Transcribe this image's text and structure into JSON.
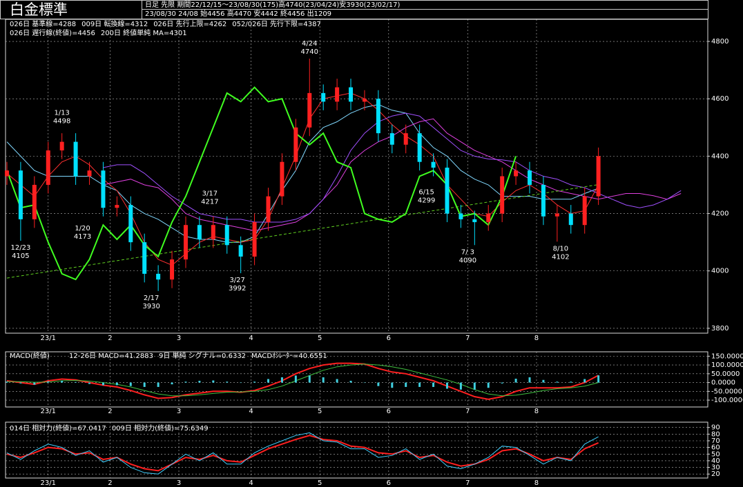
{
  "chart_data": [
    {
      "type": "candlestick",
      "title": "白金標準",
      "subtitle": "日足  先限  期間22/12/15～23/08/30(175)高4740(23/04/24)安3930(23/02/17)",
      "info": "23/08/30 24/08 始4456 高4470 安4442 終4456 出1209",
      "x": [
        0,
        4,
        8,
        12,
        16,
        20,
        24,
        28,
        32,
        36,
        40,
        44,
        48,
        52,
        56,
        60,
        64,
        68,
        72,
        76,
        80,
        84,
        88,
        92,
        96,
        100,
        104,
        108,
        112,
        116,
        120,
        124,
        128,
        132,
        136,
        140,
        144,
        148,
        152,
        156,
        160,
        164,
        168,
        172,
        176,
        180,
        184,
        188,
        192,
        196
      ],
      "open": [
        4330,
        4350,
        4180,
        4300,
        4420,
        4450,
        4330,
        4350,
        4220,
        4230,
        4100,
        3990,
        3970,
        4040,
        4160,
        4110,
        4160,
        4090,
        4050,
        4170,
        4260,
        4380,
        4500,
        4620,
        4590,
        4640,
        4590,
        4600,
        4480,
        4440,
        4480,
        4380,
        4360,
        4200,
        4180,
        4170,
        4200,
        4330,
        4350,
        4300,
        4190,
        4200,
        4160,
        4260,
        null,
        null,
        null,
        null,
        null,
        null
      ],
      "high": [
        4380,
        4380,
        4330,
        4450,
        4480,
        4480,
        4380,
        4380,
        4260,
        4260,
        4130,
        4020,
        4070,
        4190,
        4190,
        4190,
        4190,
        4120,
        4200,
        4290,
        4410,
        4530,
        4740,
        4650,
        4670,
        4670,
        4630,
        4630,
        4510,
        4510,
        4510,
        4410,
        4390,
        4230,
        4210,
        4230,
        4360,
        4380,
        4380,
        4330,
        4230,
        4230,
        4290,
        4430,
        null,
        null,
        null,
        null,
        null,
        null
      ],
      "low": [
        4300,
        4105,
        4150,
        4270,
        4390,
        4300,
        4300,
        4190,
        4190,
        4070,
        3960,
        3930,
        3940,
        4010,
        4080,
        4080,
        4060,
        3992,
        4020,
        4140,
        4230,
        4350,
        4470,
        4560,
        4560,
        4560,
        4560,
        4450,
        4410,
        4410,
        4350,
        4330,
        4170,
        4150,
        4090,
        4140,
        4170,
        4300,
        4270,
        4160,
        4102,
        4130,
        4130,
        4230,
        null,
        null,
        null,
        null,
        null,
        null
      ],
      "close": [
        4350,
        4180,
        4300,
        4420,
        4450,
        4330,
        4350,
        4220,
        4230,
        4100,
        3990,
        3970,
        4040,
        4160,
        4110,
        4160,
        4090,
        4050,
        4170,
        4260,
        4380,
        4500,
        4620,
        4590,
        4640,
        4590,
        4600,
        4480,
        4440,
        4480,
        4380,
        4360,
        4200,
        4180,
        4170,
        4200,
        4330,
        4350,
        4300,
        4190,
        4200,
        4160,
        4260,
        4400,
        null,
        null,
        null,
        null,
        null,
        null
      ],
      "up_color": "#ff2020",
      "down_color": "#00e0ff",
      "series": [
        {
          "name": "026日 基準線=4288",
          "color": "#80d8ff",
          "style": "line",
          "values": [
            4450,
            4400,
            4350,
            4330,
            4330,
            4330,
            4330,
            4300,
            4280,
            4230,
            4200,
            4180,
            4150,
            4120,
            4110,
            4110,
            4100,
            4100,
            4120,
            4200,
            4280,
            4350,
            4450,
            4500,
            4520,
            4550,
            4570,
            4580,
            4560,
            4550,
            4480,
            4430,
            4400,
            4350,
            4320,
            4300,
            4260,
            4260,
            4260,
            4250,
            4250,
            4250,
            4270,
            4288,
            null,
            null,
            null,
            null,
            null,
            null
          ]
        },
        {
          "name": "009日 転換線=4312",
          "color": "#ff3030",
          "style": "line",
          "values": [
            4340,
            4300,
            4260,
            4330,
            4380,
            4400,
            4370,
            4320,
            4280,
            4200,
            4100,
            4040,
            4020,
            4060,
            4100,
            4120,
            4110,
            4100,
            4110,
            4180,
            4290,
            4400,
            4530,
            4600,
            4610,
            4620,
            4600,
            4560,
            4510,
            4470,
            4440,
            4400,
            4300,
            4250,
            4200,
            4190,
            4240,
            4280,
            4300,
            4270,
            4230,
            4200,
            4210,
            4300,
            null,
            null,
            null,
            null,
            null,
            null
          ]
        },
        {
          "name": "026日 先行上限=4262",
          "color": "#e040e0",
          "style": "line",
          "values": [
            null,
            null,
            null,
            null,
            null,
            null,
            null,
            4300,
            4310,
            4320,
            4300,
            4290,
            4250,
            4200,
            4180,
            4170,
            4160,
            4150,
            4140,
            4150,
            4160,
            4170,
            4200,
            4250,
            4300,
            4380,
            4420,
            4450,
            4470,
            4500,
            4520,
            4530,
            4480,
            4450,
            4420,
            4400,
            4380,
            4350,
            4320,
            4300,
            4280,
            4270,
            4260,
            4250,
            4260,
            4270,
            4270,
            4262,
            4250,
            4270
          ]
        },
        {
          "name": "052/026日 先行下限=4387",
          "color": "#a050ff",
          "style": "line",
          "values": [
            null,
            null,
            null,
            null,
            null,
            null,
            null,
            4360,
            4370,
            4370,
            4340,
            4300,
            4260,
            4230,
            4200,
            4190,
            4180,
            4180,
            4170,
            4170,
            4170,
            4180,
            4200,
            4250,
            4330,
            4420,
            4480,
            4520,
            4540,
            4550,
            4540,
            4500,
            4460,
            4420,
            4400,
            4390,
            4387,
            4380,
            4350,
            4330,
            4320,
            4300,
            4290,
            4270,
            4250,
            4230,
            4220,
            4230,
            4250,
            4280
          ]
        },
        {
          "name": "026日 遅行線(終値)=4456",
          "color": "#40ff20",
          "style": "thick",
          "values": [
            4350,
            4220,
            4230,
            4100,
            3990,
            3970,
            4040,
            4160,
            4110,
            4160,
            4090,
            4050,
            4170,
            4260,
            4380,
            4500,
            4620,
            4590,
            4640,
            4590,
            4600,
            4480,
            4440,
            4480,
            4380,
            4360,
            4200,
            4180,
            4170,
            4200,
            4330,
            4350,
            4300,
            4190,
            4200,
            4160,
            4260,
            4400,
            null,
            null,
            null,
            null,
            null,
            null,
            null,
            null,
            null,
            null,
            null,
            null
          ]
        },
        {
          "name": "200日 終値単純 MA=4301",
          "color": "#60d020",
          "style": "dashed",
          "x": [
            0,
            172
          ],
          "values": [
            3975,
            4301
          ]
        }
      ],
      "annotations": [
        {
          "label": "1/13",
          "value": 4498,
          "x": 16,
          "color": "#ff3030"
        },
        {
          "label": "4/24",
          "value": 4740,
          "x": 88,
          "color": "#ff3030"
        },
        {
          "label": "3/17",
          "value": 4217,
          "x": 59,
          "color": "#ff3030"
        },
        {
          "label": "12/23",
          "value": 4105,
          "x": 4,
          "color": "#a0e8ff"
        },
        {
          "label": "1/20",
          "value": 4173,
          "x": 22,
          "color": "#a0e8ff"
        },
        {
          "label": "2/17",
          "value": 3930,
          "x": 42,
          "color": "#a0e8ff"
        },
        {
          "label": "3/27",
          "value": 3992,
          "x": 67,
          "color": "#a0e8ff"
        },
        {
          "label": "6/15",
          "value": 4299,
          "x": 122,
          "color": "#a0e8ff"
        },
        {
          "label": "7/ 3",
          "value": 4090,
          "x": 134,
          "color": "#a0e8ff"
        },
        {
          "label": "8/10",
          "value": 4102,
          "x": 161,
          "color": "#a0e8ff"
        }
      ],
      "xlim": [
        -0.4,
        203.8
      ],
      "ylim": [
        3783,
        4877
      ],
      "xticks": [
        {
          "value": 12,
          "label": "23/1"
        },
        {
          "value": 30,
          "label": "2"
        },
        {
          "value": 50,
          "label": "3"
        },
        {
          "value": 71,
          "label": "4"
        },
        {
          "value": 91,
          "label": "5"
        },
        {
          "value": 111,
          "label": "6"
        },
        {
          "value": 134,
          "label": "7"
        },
        {
          "value": 154,
          "label": "8"
        }
      ],
      "yticks": [
        3800,
        4000,
        4200,
        4400,
        4600,
        4800
      ],
      "grid": true
    },
    {
      "type": "macd",
      "title": "MACD(終値)",
      "x": [
        0,
        4,
        8,
        12,
        16,
        20,
        24,
        28,
        32,
        36,
        40,
        44,
        48,
        52,
        56,
        60,
        64,
        68,
        72,
        76,
        80,
        84,
        88,
        92,
        96,
        100,
        104,
        108,
        112,
        116,
        120,
        124,
        128,
        132,
        136,
        140,
        144,
        148,
        152,
        156,
        160,
        164,
        168,
        172
      ],
      "series": [
        {
          "name": "12-26日 MACD=41.2883",
          "color": "#ff2020",
          "style": "thick",
          "values": [
            10,
            0,
            -10,
            10,
            20,
            15,
            0,
            -15,
            -25,
            -45,
            -70,
            -90,
            -85,
            -70,
            -60,
            -50,
            -50,
            -55,
            -45,
            -20,
            10,
            50,
            80,
            100,
            110,
            110,
            105,
            80,
            60,
            50,
            30,
            10,
            -20,
            -50,
            -80,
            -95,
            -80,
            -50,
            -30,
            -30,
            -30,
            -25,
            0,
            41
          ]
        },
        {
          "name": "9日 単純 シグナル=0.6332",
          "color": "#40c040",
          "style": "line",
          "values": [
            5,
            5,
            2,
            3,
            10,
            12,
            8,
            0,
            -10,
            -25,
            -45,
            -65,
            -75,
            -75,
            -70,
            -62,
            -55,
            -53,
            -50,
            -40,
            -20,
            10,
            40,
            70,
            90,
            100,
            105,
            100,
            90,
            75,
            55,
            35,
            15,
            -10,
            -40,
            -65,
            -75,
            -72,
            -60,
            -45,
            -35,
            -30,
            -20,
            0
          ]
        },
        {
          "name": "MACDｵｼﾚｰﾀｰ=40.6551",
          "color": "#40d0e0",
          "style": "bar",
          "values": [
            5,
            -5,
            -12,
            7,
            10,
            3,
            -8,
            -15,
            -15,
            -20,
            -25,
            -25,
            -10,
            5,
            10,
            12,
            5,
            -2,
            5,
            20,
            30,
            40,
            40,
            30,
            20,
            10,
            0,
            -20,
            -30,
            -25,
            -25,
            -25,
            -35,
            -40,
            -40,
            -30,
            -5,
            22,
            30,
            15,
            5,
            5,
            20,
            41
          ]
        }
      ],
      "xlim": [
        -0.4,
        203.8
      ],
      "ylim": [
        -139,
        175
      ],
      "xticks": [
        {
          "value": 12,
          "label": "23/1"
        },
        {
          "value": 30,
          "label": "2"
        },
        {
          "value": 50,
          "label": "3"
        },
        {
          "value": 71,
          "label": "4"
        },
        {
          "value": 91,
          "label": "5"
        },
        {
          "value": 111,
          "label": "6"
        },
        {
          "value": 134,
          "label": "7"
        },
        {
          "value": 154,
          "label": "8"
        }
      ],
      "yticks": [
        {
          "value": 150,
          "label": "150.0000"
        },
        {
          "value": 100,
          "label": "100.0000"
        },
        {
          "value": 50,
          "label": "50.0000"
        },
        {
          "value": 0,
          "label": "0.0000"
        },
        {
          "value": -50,
          "label": "-50.0000"
        },
        {
          "value": -100,
          "label": "-100.0000"
        }
      ],
      "grid": true
    },
    {
      "type": "line",
      "x": [
        0,
        4,
        8,
        12,
        16,
        20,
        24,
        28,
        32,
        36,
        40,
        44,
        48,
        52,
        56,
        60,
        64,
        68,
        72,
        76,
        80,
        84,
        88,
        92,
        96,
        100,
        104,
        108,
        112,
        116,
        120,
        124,
        128,
        132,
        136,
        140,
        144,
        148,
        152,
        156,
        160,
        164,
        168,
        172
      ],
      "series": [
        {
          "name": "014日 相対力(終値)=67.0417",
          "color": "#ff2020",
          "style": "thick",
          "values": [
            50,
            45,
            52,
            60,
            58,
            50,
            52,
            42,
            45,
            35,
            28,
            25,
            35,
            45,
            42,
            48,
            40,
            38,
            48,
            58,
            65,
            72,
            78,
            72,
            70,
            62,
            60,
            52,
            50,
            55,
            45,
            48,
            38,
            32,
            35,
            42,
            55,
            58,
            50,
            40,
            45,
            42,
            58,
            67
          ]
        },
        {
          "name": "009日 相対力(終値)=75.6349",
          "color": "#40d0ff",
          "style": "line",
          "values": [
            52,
            42,
            55,
            65,
            60,
            48,
            55,
            38,
            45,
            30,
            22,
            20,
            35,
            50,
            40,
            52,
            35,
            35,
            52,
            62,
            70,
            78,
            82,
            70,
            68,
            58,
            58,
            45,
            48,
            58,
            42,
            50,
            32,
            28,
            35,
            45,
            62,
            60,
            48,
            35,
            45,
            40,
            65,
            76
          ]
        }
      ],
      "xlim": [
        -0.4,
        203.8
      ],
      "ylim": [
        14,
        98
      ],
      "xticks": [
        {
          "value": 12,
          "label": "23/1"
        },
        {
          "value": 30,
          "label": "2"
        },
        {
          "value": 50,
          "label": "3"
        },
        {
          "value": 71,
          "label": "4"
        },
        {
          "value": 91,
          "label": "5"
        },
        {
          "value": 111,
          "label": "6"
        },
        {
          "value": 134,
          "label": "7"
        },
        {
          "value": 154,
          "label": "8"
        }
      ],
      "yticks": [
        20,
        30,
        40,
        50,
        60,
        70,
        80,
        90
      ],
      "grid": true
    }
  ]
}
